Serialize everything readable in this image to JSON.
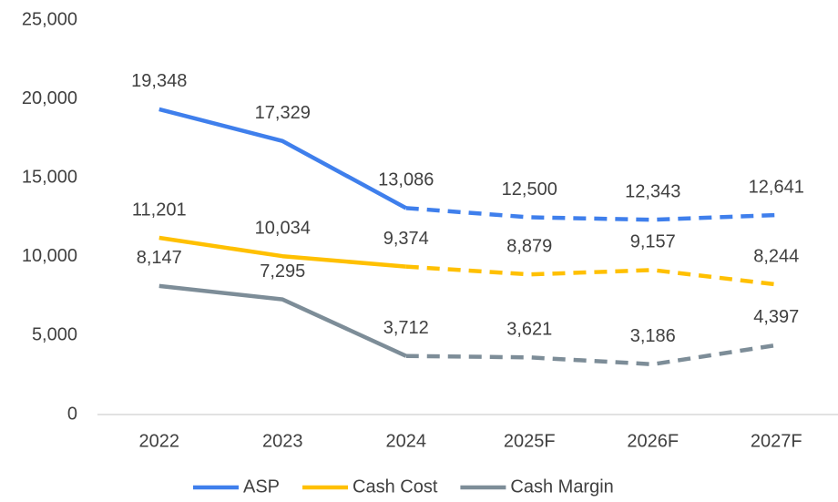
{
  "chart_data": {
    "type": "line",
    "categories": [
      "2022",
      "2023",
      "2024",
      "2025F",
      "2026F",
      "2027F"
    ],
    "series": [
      {
        "name": "ASP",
        "color": "#3f7fec",
        "values": [
          19348,
          17329,
          13086,
          12500,
          12343,
          12641
        ],
        "value_labels": [
          "19,348",
          "17,329",
          "13,086",
          "12,500",
          "12,343",
          "12,641"
        ]
      },
      {
        "name": "Cash Cost",
        "color": "#ffc000",
        "values": [
          11201,
          10034,
          9374,
          8879,
          9157,
          8244
        ],
        "value_labels": [
          "11,201",
          "10,034",
          "9,374",
          "8,879",
          "9,157",
          "8,244"
        ]
      },
      {
        "name": "Cash Margin",
        "color": "#7d8d98",
        "values": [
          8147,
          7295,
          3712,
          3621,
          3186,
          4397
        ],
        "value_labels": [
          "8,147",
          "7,295",
          "3,712",
          "3,621",
          "3,186",
          "4,397"
        ]
      }
    ],
    "dashed_from": 2,
    "ylim": [
      0,
      25000
    ],
    "yticks": [
      0,
      {
        "value": 5000,
        "label": "5,000"
      },
      {
        "value": 10000,
        "label": "10,000"
      },
      {
        "value": 15000,
        "label": "15,000"
      },
      {
        "value": 20000,
        "label": "20,000"
      },
      {
        "value": 25000,
        "label": "25,000"
      }
    ],
    "legend": "bottom"
  }
}
